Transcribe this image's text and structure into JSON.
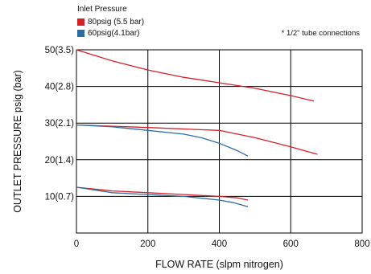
{
  "legend": {
    "title": "Inlet Pressure",
    "items": [
      {
        "label": "80psig (5.5 bar)",
        "color": "#d62027"
      },
      {
        "label": "60psig(4.1bar)",
        "color": "#2e6da4"
      }
    ]
  },
  "note": "* 1/2\" tube connections",
  "chart_data": {
    "type": "line",
    "xlabel": "FLOW RATE (slpm nitrogen)",
    "ylabel": "OUTLET PRESSURE psig (bar)",
    "xlim": [
      0,
      800
    ],
    "ylim": [
      0,
      50
    ],
    "xticks": [
      0,
      200,
      400,
      600,
      800
    ],
    "yticks": [
      {
        "value": 10,
        "label": "10(0.7)"
      },
      {
        "value": 20,
        "label": "20(1.4)"
      },
      {
        "value": 30,
        "label": "30(2.1)"
      },
      {
        "value": 40,
        "label": "40(2.8)"
      },
      {
        "value": 50,
        "label": "50(3.5)"
      }
    ],
    "grid": true,
    "series": [
      {
        "name": "80psig (5.5 bar)",
        "color": "#d62027",
        "points": [
          [
            0,
            50
          ],
          [
            100,
            47
          ],
          [
            200,
            44.5
          ],
          [
            300,
            42.5
          ],
          [
            400,
            41
          ],
          [
            500,
            39.5
          ],
          [
            600,
            37.5
          ],
          [
            665,
            36
          ]
        ]
      },
      {
        "name": "80psig (5.5 bar)",
        "color": "#d62027",
        "points": [
          [
            0,
            29.5
          ],
          [
            200,
            28.8
          ],
          [
            400,
            28
          ],
          [
            500,
            26
          ],
          [
            600,
            23.5
          ],
          [
            675,
            21.5
          ]
        ]
      },
      {
        "name": "80psig (5.5 bar)",
        "color": "#d62027",
        "points": [
          [
            0,
            12.5
          ],
          [
            100,
            11.5
          ],
          [
            200,
            11
          ],
          [
            300,
            10.5
          ],
          [
            400,
            10
          ],
          [
            450,
            9.6
          ],
          [
            480,
            9
          ]
        ]
      },
      {
        "name": "60psig(4.1bar)",
        "color": "#2e6da4",
        "points": [
          [
            0,
            29.5
          ],
          [
            100,
            29
          ],
          [
            200,
            28
          ],
          [
            300,
            27
          ],
          [
            350,
            26
          ],
          [
            400,
            24.5
          ],
          [
            450,
            22.5
          ],
          [
            480,
            21
          ]
        ]
      },
      {
        "name": "60psig(4.1bar)",
        "color": "#2e6da4",
        "points": [
          [
            0,
            12.5
          ],
          [
            100,
            11
          ],
          [
            200,
            10.5
          ],
          [
            300,
            10
          ],
          [
            400,
            9
          ],
          [
            440,
            8.3
          ],
          [
            480,
            7.2
          ]
        ]
      }
    ]
  }
}
